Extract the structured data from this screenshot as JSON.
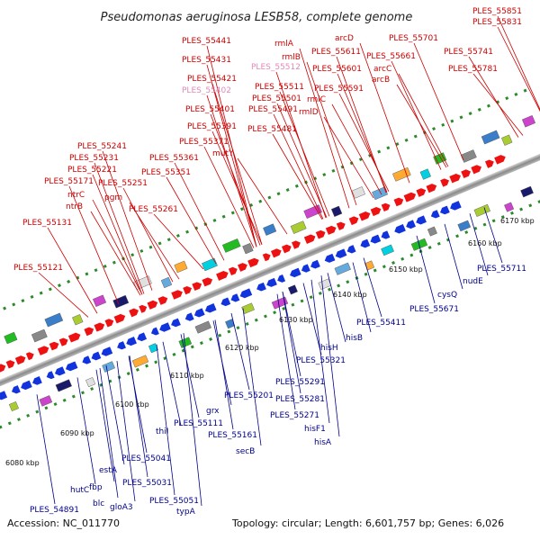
{
  "title": "Pseudomonas aeruginosa LESB58, complete genome",
  "footer": {
    "accession": "Accession: NC_011770",
    "summary": "Topology: circular; Length: 6,601,757 bp; Genes: 6,026"
  },
  "colors": {
    "top_label": "#cc0000",
    "bottom_label": "#00008b",
    "faded_label": "#e08ab8",
    "forward_gene": "#ee1111",
    "reverse_gene": "#1133dd",
    "backbone": "#9a9a9a",
    "tick": "#2a8a2a"
  },
  "tick_labels": [
    "6080 kbp",
    "6090 kbp",
    "6100 kbp",
    "6110 kbp",
    "6120 kbp",
    "6130 kbp",
    "6140 kbp",
    "6150 kbp",
    "6160 kbp",
    "6170 kbp"
  ],
  "top_labels": [
    {
      "text": "PLES_55851",
      "faded": false
    },
    {
      "text": "PLES_55831",
      "faded": false
    },
    {
      "text": "PLES_55441",
      "faded": false
    },
    {
      "text": "rmlA",
      "faded": false
    },
    {
      "text": "arcD",
      "faded": false
    },
    {
      "text": "PLES_55701",
      "faded": false
    },
    {
      "text": "PLES_55611",
      "faded": false
    },
    {
      "text": "PLES_55741",
      "faded": false
    },
    {
      "text": "PLES_55431",
      "faded": false
    },
    {
      "text": "rmlB",
      "faded": false
    },
    {
      "text": "PLES_55661",
      "faded": false
    },
    {
      "text": "PLES_55512",
      "faded": true
    },
    {
      "text": "PLES_55601",
      "faded": false
    },
    {
      "text": "arcC",
      "faded": false
    },
    {
      "text": "PLES_55781",
      "faded": false
    },
    {
      "text": "PLES_55421",
      "faded": false
    },
    {
      "text": "arcB",
      "faded": false
    },
    {
      "text": "PLES_55402",
      "faded": true
    },
    {
      "text": "PLES_55511",
      "faded": false
    },
    {
      "text": "PLES_55591",
      "faded": false
    },
    {
      "text": "PLES_55501",
      "faded": false
    },
    {
      "text": "rmlC",
      "faded": false
    },
    {
      "text": "PLES_55401",
      "faded": false
    },
    {
      "text": "PLES_55491",
      "faded": false
    },
    {
      "text": "rmlD",
      "faded": false
    },
    {
      "text": "PLES_55391",
      "faded": false
    },
    {
      "text": "PLES_55481",
      "faded": false
    },
    {
      "text": "PLES_55371",
      "faded": false
    },
    {
      "text": "PLES_55241",
      "faded": false
    },
    {
      "text": "mutY",
      "faded": false
    },
    {
      "text": "PLES_55231",
      "faded": false
    },
    {
      "text": "PLES_55361",
      "faded": false
    },
    {
      "text": "PLES_55221",
      "faded": false
    },
    {
      "text": "PLES_55351",
      "faded": false
    },
    {
      "text": "PLES_55171",
      "faded": false
    },
    {
      "text": "PLES_55251",
      "faded": false
    },
    {
      "text": "ntrC",
      "faded": false
    },
    {
      "text": "pgm",
      "faded": false
    },
    {
      "text": "ntrB",
      "faded": false
    },
    {
      "text": "PLES_55261",
      "faded": false
    },
    {
      "text": "PLES_55131",
      "faded": false
    },
    {
      "text": "PLES_55121",
      "faded": false
    }
  ],
  "bottom_labels": [
    {
      "text": "PLES_55711"
    },
    {
      "text": "nudE"
    },
    {
      "text": "cysQ"
    },
    {
      "text": "PLES_55671"
    },
    {
      "text": "PLES_55411"
    },
    {
      "text": "hisB"
    },
    {
      "text": "hisH"
    },
    {
      "text": "PLES_55321"
    },
    {
      "text": "PLES_55291"
    },
    {
      "text": "PLES_55201"
    },
    {
      "text": "PLES_55281"
    },
    {
      "text": "grx"
    },
    {
      "text": "PLES_55271"
    },
    {
      "text": "PLES_55111"
    },
    {
      "text": "hisF1"
    },
    {
      "text": "PLES_55161"
    },
    {
      "text": "hisA"
    },
    {
      "text": "thiI"
    },
    {
      "text": "secB"
    },
    {
      "text": "PLES_55041"
    },
    {
      "text": "estA"
    },
    {
      "text": "PLES_55031"
    },
    {
      "text": "hutC"
    },
    {
      "text": "fbp"
    },
    {
      "text": "PLES_55051"
    },
    {
      "text": "blc"
    },
    {
      "text": "gloA3"
    },
    {
      "text": "typA"
    },
    {
      "text": "PLES_54891"
    }
  ]
}
